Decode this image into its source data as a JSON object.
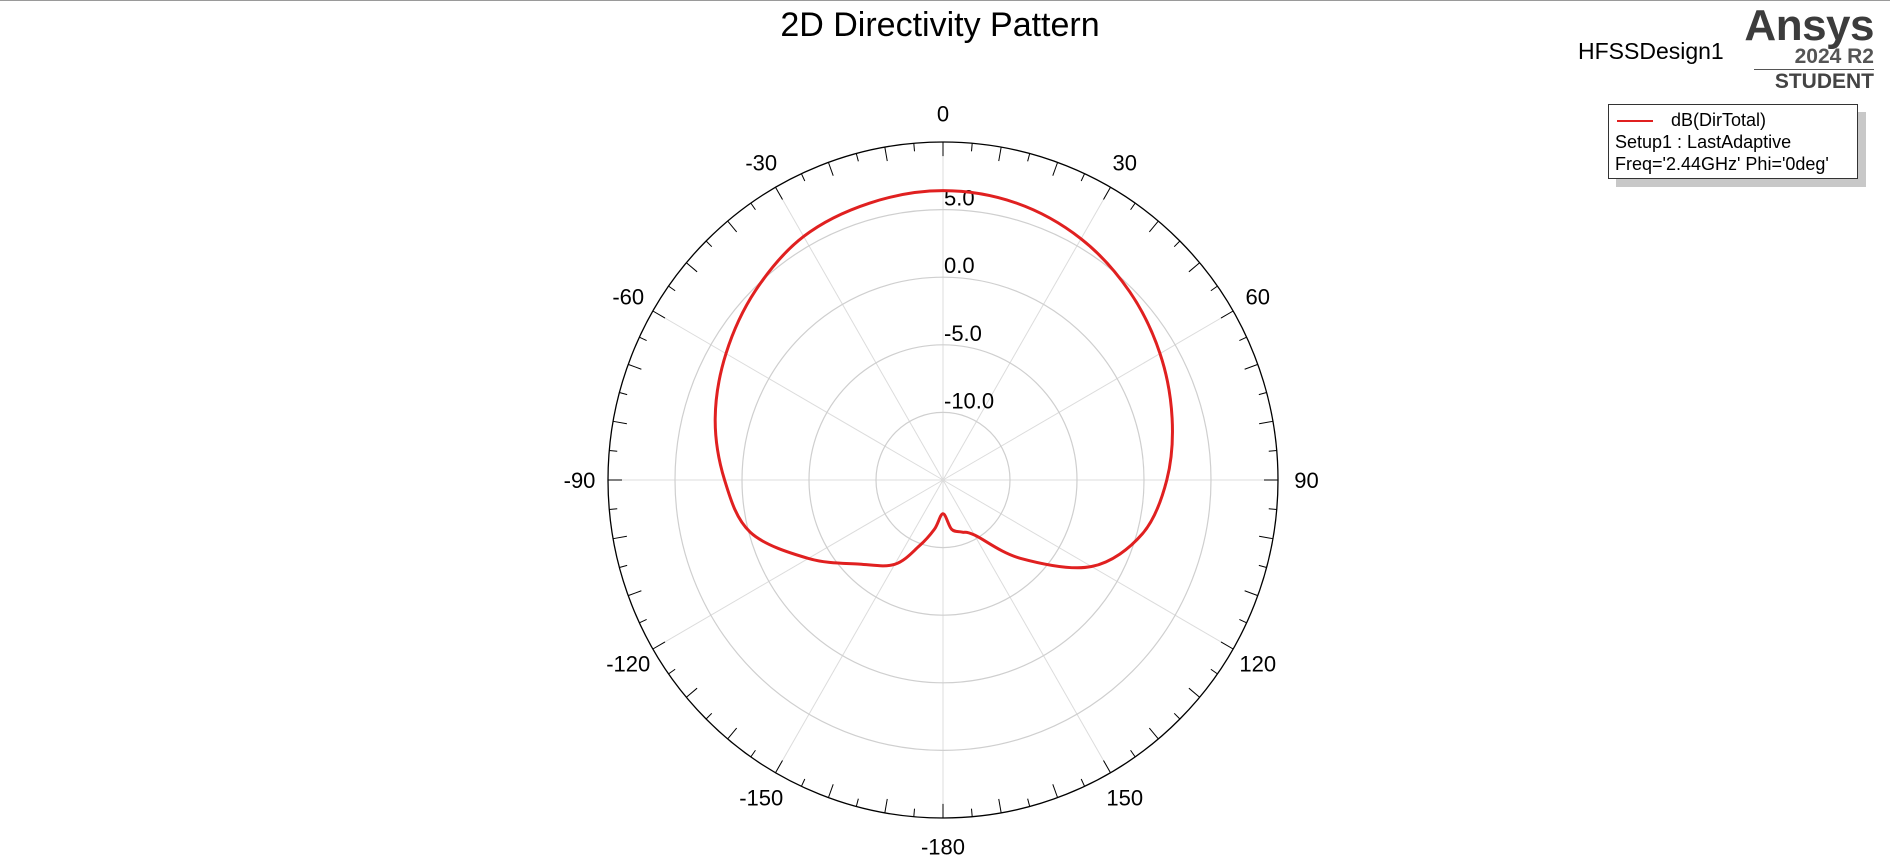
{
  "title": "2D Directivity Pattern",
  "design_name": "HFSSDesign1",
  "brand": {
    "name": "Ansys",
    "version": "2024 R2",
    "edition": "STUDENT"
  },
  "legend": {
    "series_label": "dB(DirTotal)",
    "setup": "Setup1 : LastAdaptive",
    "sweep": "Freq='2.44GHz' Phi='0deg'",
    "line_color": "#e02020"
  },
  "chart_data": {
    "type": "polar-line",
    "title": "2D Directivity Pattern",
    "angle_unit": "deg",
    "angle_zero": "top",
    "angle_direction": "clockwise",
    "angle_tick_labels": [
      "0",
      "30",
      "60",
      "90",
      "120",
      "150",
      "-180",
      "-150",
      "-120",
      "-90",
      "-60",
      "-30"
    ],
    "radial_axis": {
      "range": [
        -15,
        10
      ],
      "rings": [
        -10,
        -5,
        0,
        5
      ],
      "ring_labels": [
        "-10.0",
        "-5.0",
        "0.0",
        "5.0"
      ],
      "label_angle": 0
    },
    "grid": true,
    "series": [
      {
        "name": "dB(DirTotal)",
        "color": "#e02020",
        "theta": [
          0,
          15,
          30,
          45,
          60,
          75,
          90,
          105,
          120,
          135,
          150,
          160,
          170,
          180,
          -170,
          -160,
          -150,
          -135,
          -120,
          -105,
          -90,
          -75,
          -60,
          -45,
          -30,
          -15
        ],
        "values": [
          6.4,
          6.2,
          5.6,
          4.7,
          3.7,
          2.7,
          1.7,
          0.4,
          -2.2,
          -6.8,
          -10.3,
          -10.9,
          -11.3,
          -12.5,
          -11.3,
          -9.8,
          -7.8,
          -6.2,
          -3.4,
          -0.1,
          1.3,
          2.6,
          3.7,
          4.8,
          5.8,
          6.2
        ]
      }
    ]
  }
}
